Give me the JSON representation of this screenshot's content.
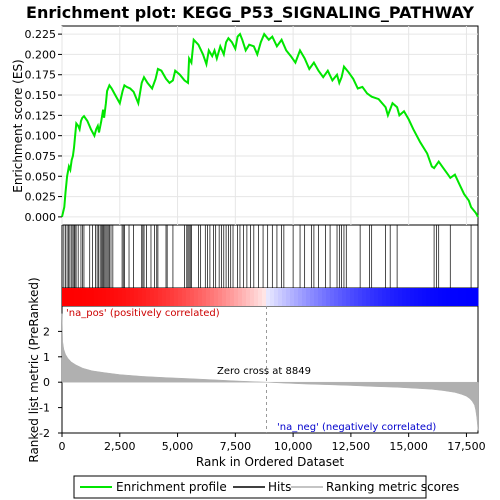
{
  "chart_data": [
    {
      "type": "line",
      "title": "Enrichment plot: KEGG_P53_SIGNALING_PATHWAY",
      "ylabel": "Enrichment score (ES)",
      "ylim": [
        -0.01,
        0.235
      ],
      "xlim": [
        0,
        18000
      ],
      "yticks": [
        0.0,
        0.025,
        0.05,
        0.075,
        0.1,
        0.125,
        0.15,
        0.175,
        0.2,
        0.225
      ],
      "ytick_labels": [
        "0.000",
        "0.025",
        "0.050",
        "0.075",
        "0.100",
        "0.125",
        "0.150",
        "0.175",
        "0.200",
        "0.225"
      ],
      "grid": true,
      "line_color": "#00e600",
      "series": [
        {
          "name": "Enrichment profile",
          "x": [
            0,
            100,
            150,
            220,
            300,
            360,
            420,
            470,
            520,
            560,
            620,
            700,
            760,
            820,
            880,
            950,
            1100,
            1250,
            1400,
            1480,
            1550,
            1600,
            1700,
            1780,
            1820,
            1900,
            1950,
            2050,
            2150,
            2300,
            2500,
            2620,
            2700,
            2800,
            2950,
            3100,
            3300,
            3450,
            3550,
            3700,
            3900,
            4050,
            4150,
            4300,
            4500,
            4650,
            4800,
            4900,
            5100,
            5300,
            5450,
            5500,
            5600,
            5700,
            5900,
            6100,
            6250,
            6350,
            6500,
            6600,
            6700,
            6850,
            7000,
            7100,
            7200,
            7350,
            7500,
            7600,
            7700,
            7800,
            7950,
            8100,
            8300,
            8450,
            8600,
            8750,
            8950,
            9100,
            9300,
            9500,
            9700,
            9900,
            10100,
            10300,
            10500,
            10700,
            10900,
            11100,
            11300,
            11500,
            11700,
            11900,
            12000,
            12100,
            12200,
            12400,
            12600,
            12800,
            13000,
            13200,
            13400,
            13700,
            14000,
            14100,
            14300,
            14500,
            14600,
            14800,
            15000,
            15200,
            15500,
            15800,
            16000,
            16100,
            16300,
            16500,
            16700,
            16800,
            17000,
            17200,
            17400,
            17600,
            17700,
            17900,
            18000
          ],
          "values": [
            0.0,
            0.012,
            0.03,
            0.05,
            0.062,
            0.058,
            0.07,
            0.075,
            0.085,
            0.097,
            0.115,
            0.112,
            0.108,
            0.118,
            0.122,
            0.124,
            0.118,
            0.108,
            0.1,
            0.108,
            0.112,
            0.104,
            0.118,
            0.132,
            0.122,
            0.14,
            0.155,
            0.162,
            0.158,
            0.15,
            0.14,
            0.155,
            0.162,
            0.16,
            0.158,
            0.154,
            0.14,
            0.165,
            0.172,
            0.165,
            0.158,
            0.17,
            0.182,
            0.18,
            0.17,
            0.165,
            0.168,
            0.18,
            0.175,
            0.168,
            0.165,
            0.195,
            0.19,
            0.218,
            0.212,
            0.2,
            0.188,
            0.205,
            0.198,
            0.205,
            0.195,
            0.21,
            0.2,
            0.215,
            0.22,
            0.215,
            0.207,
            0.222,
            0.225,
            0.218,
            0.205,
            0.212,
            0.21,
            0.2,
            0.215,
            0.225,
            0.218,
            0.222,
            0.21,
            0.218,
            0.205,
            0.198,
            0.19,
            0.205,
            0.195,
            0.182,
            0.19,
            0.18,
            0.172,
            0.18,
            0.168,
            0.175,
            0.165,
            0.172,
            0.185,
            0.178,
            0.17,
            0.158,
            0.16,
            0.152,
            0.148,
            0.145,
            0.135,
            0.125,
            0.14,
            0.135,
            0.125,
            0.13,
            0.12,
            0.108,
            0.092,
            0.078,
            0.062,
            0.06,
            0.068,
            0.06,
            0.052,
            0.048,
            0.052,
            0.04,
            0.028,
            0.02,
            0.012,
            0.005,
            0.0
          ]
        }
      ]
    },
    {
      "type": "barcode",
      "name": "Hits",
      "xlim": [
        0,
        18000
      ],
      "hits": [
        80,
        150,
        220,
        280,
        340,
        400,
        470,
        520,
        560,
        610,
        700,
        820,
        880,
        950,
        1200,
        1320,
        1450,
        1520,
        1580,
        1650,
        1700,
        1760,
        1800,
        1850,
        1900,
        1950,
        2000,
        2050,
        2120,
        2200,
        2600,
        2650,
        2700,
        2900,
        3100,
        3450,
        3500,
        3550,
        3650,
        3850,
        4000,
        4100,
        4150,
        4500,
        4550,
        4800,
        5300,
        5400,
        5450,
        5500,
        5550,
        5600,
        5900,
        6000,
        6200,
        6300,
        6400,
        6550,
        6650,
        6800,
        6900,
        7000,
        7100,
        7200,
        7300,
        7400,
        7600,
        7700,
        7850,
        8000,
        8150,
        8300,
        8500,
        8700,
        8900,
        9100,
        9300,
        9500,
        9600,
        10000,
        10300,
        10500,
        10800,
        10900,
        11100,
        11400,
        11600,
        11900,
        12000,
        12100,
        12200,
        12300,
        12900,
        13300,
        13400,
        14000,
        14200,
        14500,
        16100,
        16200,
        16300,
        16800,
        17700
      ]
    },
    {
      "type": "area",
      "xlabel": "Rank in Ordered Dataset",
      "ylabel": "Ranked list metric (PreRanked)",
      "ylim": [
        -2,
        3
      ],
      "xlim": [
        0,
        18000
      ],
      "yticks": [
        -2,
        -1,
        0,
        1,
        2
      ],
      "xticks": [
        0,
        2500,
        5000,
        7500,
        10000,
        12500,
        15000,
        17500
      ],
      "xtick_labels": [
        "0",
        "2,500",
        "5,000",
        "7,500",
        "10,000",
        "12,500",
        "15,000",
        "17,500"
      ],
      "fill_color": "#b0b0b0",
      "series": [
        {
          "name": "Ranking metric scores",
          "x": [
            0,
            30,
            80,
            150,
            250,
            400,
            600,
            900,
            1300,
            1800,
            2500,
            3500,
            4500,
            5500,
            6500,
            7500,
            8849,
            9500,
            10500,
            11500,
            12500,
            13500,
            14500,
            15500,
            16000,
            16500,
            17000,
            17300,
            17500,
            17650,
            17750,
            17850,
            17900,
            17950,
            18000
          ],
          "values": [
            2.7,
            1.6,
            1.3,
            1.1,
            0.95,
            0.8,
            0.68,
            0.55,
            0.45,
            0.38,
            0.3,
            0.23,
            0.18,
            0.14,
            0.1,
            0.05,
            0.0,
            -0.03,
            -0.07,
            -0.1,
            -0.13,
            -0.17,
            -0.2,
            -0.25,
            -0.28,
            -0.33,
            -0.4,
            -0.48,
            -0.55,
            -0.65,
            -0.75,
            -0.9,
            -1.1,
            -1.4,
            -1.9
          ]
        }
      ],
      "zero_cross": 8849,
      "annotations": {
        "zero_cross_label": "Zero cross at 8849",
        "pos_label": "'na_pos' (positively correlated)",
        "neg_label": "'na_neg' (negatively correlated)"
      }
    }
  ],
  "legend": {
    "placement": "bottom",
    "items": [
      {
        "label": "Enrichment profile",
        "color": "#00e600"
      },
      {
        "label": "Hits",
        "color": "#000000"
      },
      {
        "label": "Ranking metric scores",
        "color": "#b0b0b0"
      }
    ]
  },
  "colors": {
    "pos_annotation": "#cc0000",
    "neg_annotation": "#0000cc",
    "red_band": "#ff0000",
    "blue_band": "#0000ff"
  }
}
